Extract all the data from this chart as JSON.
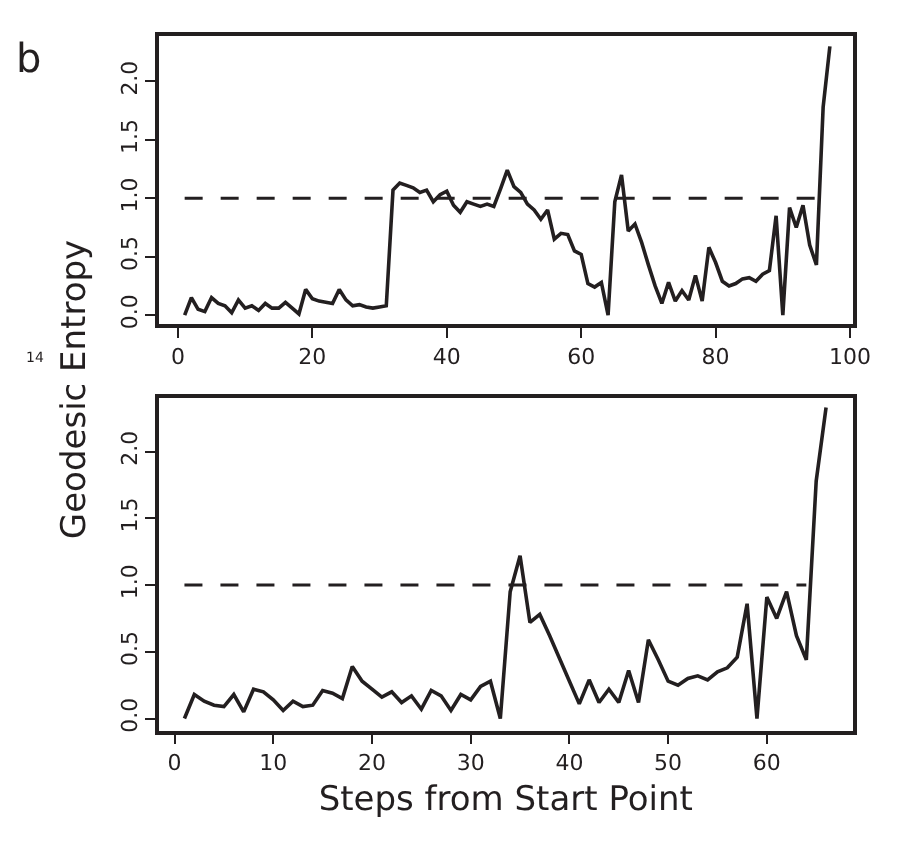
{
  "chart_data": [
    {
      "type": "line",
      "annotations": [
        "b"
      ],
      "ylabel": "Geodesic Entropy",
      "xlim": [
        -2.85,
        100.4
      ],
      "ylim": [
        -0.08,
        2.39
      ],
      "xticks": [
        0,
        20,
        40,
        60,
        80,
        100
      ],
      "yticks": [
        {
          "value": 0,
          "label": "0.0"
        },
        {
          "value": 0.5,
          "label": "0.5"
        },
        {
          "value": 1,
          "label": "1.0"
        },
        {
          "value": 1.5,
          "label": "1.5"
        },
        {
          "value": 2,
          "label": "2.0"
        }
      ],
      "marker": "none",
      "line_style": "solid",
      "x": [
        1,
        2,
        3,
        4,
        5,
        6,
        7,
        8,
        9,
        10,
        11,
        12,
        13,
        14,
        15,
        16,
        17,
        18,
        19,
        20,
        21,
        22,
        23,
        24,
        25,
        26,
        27,
        28,
        29,
        30,
        31,
        32,
        33,
        34,
        35,
        36,
        37,
        38,
        39,
        40,
        41,
        42,
        43,
        44,
        45,
        46,
        47,
        48,
        49,
        50,
        51,
        52,
        53,
        54,
        55,
        56,
        57,
        58,
        59,
        60,
        61,
        62,
        63,
        64,
        65,
        66,
        67,
        68,
        69,
        70,
        71,
        72,
        73,
        74,
        75,
        76,
        77,
        78,
        79,
        80,
        81,
        82,
        83,
        84,
        85,
        86,
        87,
        88,
        89,
        90,
        91,
        92,
        93,
        94,
        95,
        96,
        97
      ],
      "series": [
        {
          "color": "#231f20",
          "values": [
            0.0,
            0.15,
            0.05,
            0.03,
            0.15,
            0.1,
            0.08,
            0.02,
            0.13,
            0.06,
            0.08,
            0.04,
            0.1,
            0.06,
            0.06,
            0.11,
            0.06,
            0.01,
            0.22,
            0.14,
            0.12,
            0.11,
            0.1,
            0.22,
            0.13,
            0.08,
            0.09,
            0.07,
            0.06,
            0.07,
            0.08,
            1.07,
            1.13,
            1.11,
            1.09,
            1.05,
            1.07,
            0.97,
            1.03,
            1.06,
            0.94,
            0.88,
            0.97,
            0.95,
            0.93,
            0.95,
            0.93,
            1.08,
            1.24,
            1.1,
            1.05,
            0.95,
            0.9,
            0.82,
            0.9,
            0.65,
            0.7,
            0.69,
            0.55,
            0.52,
            0.27,
            0.24,
            0.28,
            0.0,
            0.97,
            1.2,
            0.72,
            0.78,
            0.62,
            0.43,
            0.25,
            0.1,
            0.28,
            0.12,
            0.21,
            0.13,
            0.34,
            0.12,
            0.58,
            0.45,
            0.29,
            0.25,
            0.27,
            0.31,
            0.32,
            0.29,
            0.35,
            0.38,
            0.85,
            0.0,
            0.92,
            0.75,
            0.94,
            0.6,
            0.43,
            1.78,
            2.3
          ]
        }
      ],
      "ref_lines": [
        {
          "axis": "y",
          "value": 1,
          "line_style": "dashed",
          "color": "#231f20"
        }
      ]
    },
    {
      "type": "line",
      "annotations": [
        "14"
      ],
      "xlabel": "Steps from Start Point",
      "xlim": [
        -1.6,
        68.7
      ],
      "ylim": [
        -0.09,
        2.4
      ],
      "xticks": [
        0,
        10,
        20,
        30,
        40,
        50,
        60
      ],
      "yticks": [
        {
          "value": 0,
          "label": "0.0"
        },
        {
          "value": 0.5,
          "label": "0.5"
        },
        {
          "value": 1,
          "label": "1.0"
        },
        {
          "value": 1.5,
          "label": "1.5"
        },
        {
          "value": 2,
          "label": "2.0"
        }
      ],
      "marker": "none",
      "line_style": "solid",
      "x": [
        1,
        2,
        3,
        4,
        5,
        6,
        7,
        8,
        9,
        10,
        11,
        12,
        13,
        14,
        15,
        16,
        17,
        18,
        19,
        20,
        21,
        22,
        23,
        24,
        25,
        26,
        27,
        28,
        29,
        30,
        31,
        32,
        33,
        34,
        35,
        36,
        37,
        38,
        39,
        40,
        41,
        42,
        43,
        44,
        45,
        46,
        47,
        48,
        49,
        50,
        51,
        52,
        53,
        54,
        55,
        56,
        57,
        58,
        59,
        60,
        61,
        62,
        63,
        64,
        65,
        66
      ],
      "series": [
        {
          "color": "#231f20",
          "values": [
            0.0,
            0.18,
            0.13,
            0.1,
            0.09,
            0.18,
            0.05,
            0.22,
            0.2,
            0.14,
            0.06,
            0.13,
            0.09,
            0.1,
            0.21,
            0.19,
            0.15,
            0.39,
            0.28,
            0.22,
            0.16,
            0.2,
            0.12,
            0.17,
            0.07,
            0.21,
            0.17,
            0.06,
            0.18,
            0.14,
            0.24,
            0.28,
            0.0,
            0.95,
            1.22,
            0.72,
            0.78,
            0.62,
            0.45,
            0.28,
            0.11,
            0.29,
            0.12,
            0.22,
            0.12,
            0.36,
            0.12,
            0.59,
            0.44,
            0.28,
            0.25,
            0.3,
            0.32,
            0.29,
            0.35,
            0.38,
            0.46,
            0.86,
            0.0,
            0.91,
            0.75,
            0.95,
            0.62,
            0.44,
            1.78,
            2.33
          ]
        }
      ],
      "ref_lines": [
        {
          "axis": "y",
          "value": 1,
          "line_style": "dashed",
          "color": "#231f20"
        }
      ]
    }
  ]
}
